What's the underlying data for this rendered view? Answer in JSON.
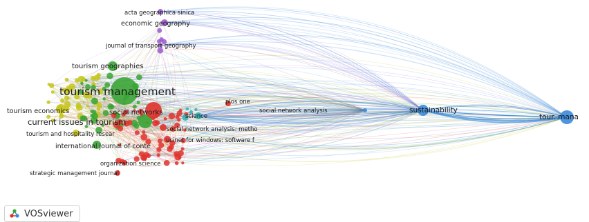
{
  "colors": {
    "blue": "#3b8ad9",
    "green": "#3aa535",
    "yellow": "#c6c51d",
    "red": "#e0322b",
    "purple": "#9b59d0",
    "teal": "#2bb3b3"
  },
  "nodes": [
    {
      "id": "tm",
      "label": "tourism management",
      "cluster": "green",
      "weight": 10
    },
    {
      "id": "cit",
      "label": "current issues in tourism",
      "cluster": "green",
      "weight": 6
    },
    {
      "id": "te",
      "label": "tourism economics",
      "cluster": "yellow",
      "weight": 3
    },
    {
      "id": "tg",
      "label": "tourism geographies",
      "cluster": "green",
      "weight": 4
    },
    {
      "id": "sn",
      "label": "social networks",
      "cluster": "red",
      "weight": 7
    },
    {
      "id": "sna_m",
      "label": "social network analysis: metho",
      "cluster": "red",
      "weight": 2
    },
    {
      "id": "ucinet",
      "label": "ucinet for windows: software f",
      "cluster": "red",
      "weight": 2
    },
    {
      "id": "ijc",
      "label": "international journal of conte",
      "cluster": "green",
      "weight": 3
    },
    {
      "id": "thr",
      "label": "tourism and hospitality resear",
      "cluster": "yellow",
      "weight": 2
    },
    {
      "id": "os",
      "label": "organization science",
      "cluster": "red",
      "weight": 2
    },
    {
      "id": "smj",
      "label": "strategic management journal",
      "cluster": "red",
      "weight": 2
    },
    {
      "id": "sci",
      "label": "science",
      "cluster": "teal",
      "weight": 3
    },
    {
      "id": "plos",
      "label": "plos one",
      "cluster": "red",
      "weight": 2
    },
    {
      "id": "sna",
      "label": "social network analysis",
      "cluster": "blue",
      "weight": 2
    },
    {
      "id": "sus",
      "label": "sustainability",
      "cluster": "blue",
      "weight": 4
    },
    {
      "id": "tmana",
      "label": "tour. mana",
      "cluster": "blue",
      "weight": 5
    },
    {
      "id": "jtg",
      "label": "journal of transport geography",
      "cluster": "purple",
      "weight": 2
    },
    {
      "id": "eg",
      "label": "economic geography",
      "cluster": "purple",
      "weight": 3
    },
    {
      "id": "ags",
      "label": "acta geographica sinica",
      "cluster": "purple",
      "weight": 2
    }
  ],
  "brand": {
    "name": "VOSviewer",
    "icon": "vosviewer-logo-icon"
  }
}
